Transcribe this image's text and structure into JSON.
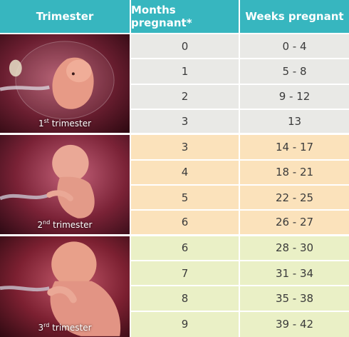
{
  "headers": {
    "trimester": "Trimester",
    "months": "Months pregnant*",
    "weeks": "Weeks pregnant"
  },
  "trimesters": [
    {
      "num": "1",
      "suffix": "st",
      "word": "trimester"
    },
    {
      "num": "2",
      "suffix": "nd",
      "word": "trimester"
    },
    {
      "num": "3",
      "suffix": "rd",
      "word": "trimester"
    }
  ],
  "rows": [
    {
      "months": "0",
      "weeks": "0 - 4"
    },
    {
      "months": "1",
      "weeks": "5 - 8"
    },
    {
      "months": "2",
      "weeks": "9 - 12"
    },
    {
      "months": "3",
      "weeks": "13"
    },
    {
      "months": "3",
      "weeks": "14 - 17"
    },
    {
      "months": "4",
      "weeks": "18 - 21"
    },
    {
      "months": "5",
      "weeks": "22 - 25"
    },
    {
      "months": "6",
      "weeks": "26 - 27"
    },
    {
      "months": "6",
      "weeks": "28 - 30"
    },
    {
      "months": "7",
      "weeks": "31 - 34"
    },
    {
      "months": "8",
      "weeks": "35 - 38"
    },
    {
      "months": "9",
      "weeks": "39 - 42"
    }
  ],
  "colors": {
    "header": "#37b6bf",
    "trimester1": "#e9e9e6",
    "trimester2": "#fbe2bb",
    "trimester3": "#eaf0c6"
  },
  "images": [
    "embryo-illustration",
    "fetus-second-trimester-illustration",
    "fetus-third-trimester-illustration"
  ]
}
